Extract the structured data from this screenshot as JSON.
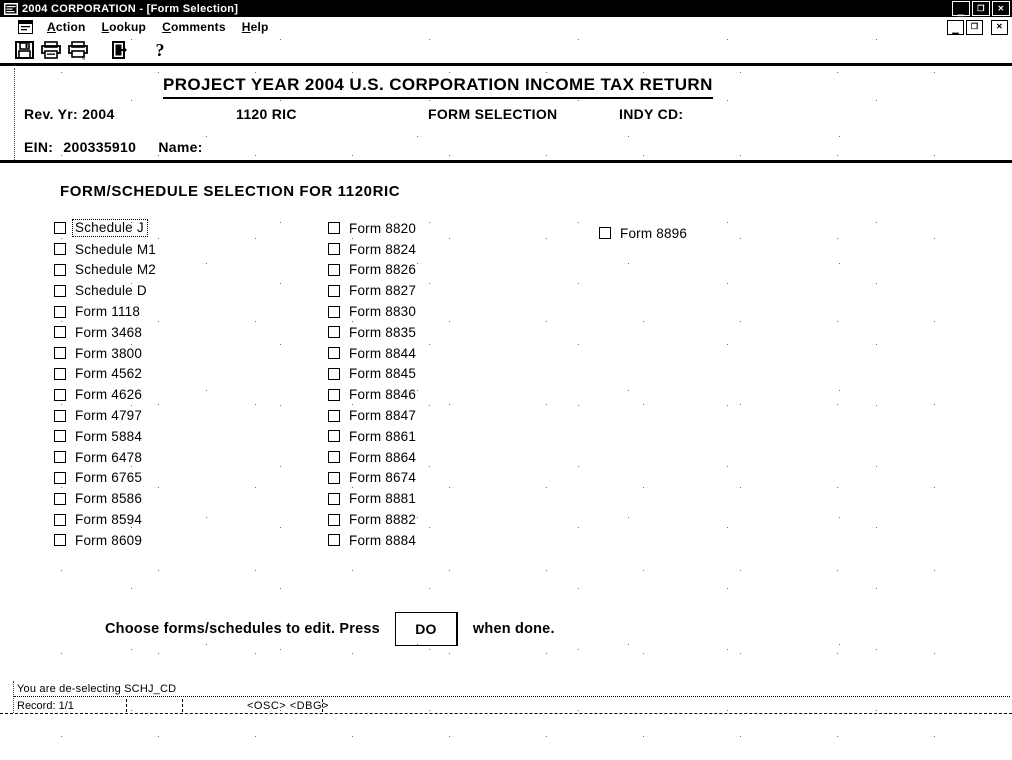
{
  "colors": {
    "titlebar_bg": "#000000",
    "titlebar_fg": "#ffffff",
    "ink": "#000000",
    "paper": "#ffffff"
  },
  "window": {
    "title": "2004 CORPORATION - [Form Selection]"
  },
  "menu": {
    "items": [
      {
        "label": "Action"
      },
      {
        "label": "Lookup"
      },
      {
        "label": "Comments"
      },
      {
        "label": "Help"
      }
    ]
  },
  "toolbar": {
    "buttons": [
      {
        "name": "save-button",
        "icon": "save-icon"
      },
      {
        "name": "print-button",
        "icon": "print-icon"
      },
      {
        "name": "print-setup-button",
        "icon": "print-setup-icon"
      },
      {
        "name": "exit-button",
        "icon": "exit-icon",
        "group_gap": true
      },
      {
        "name": "help-button",
        "icon": "help-icon",
        "group_gap": true,
        "glyph": "?"
      }
    ]
  },
  "header": {
    "title": "PROJECT YEAR 2004 U.S. CORPORATION INCOME TAX RETURN",
    "rev_yr": "Rev. Yr: 2004",
    "form_type": "1120 RIC",
    "screen_name": "FORM SELECTION",
    "indy_cd_label": "INDY CD:",
    "ein_label": "EIN:",
    "ein_value": "200335910",
    "name_label": "Name:"
  },
  "selection": {
    "heading": "FORM/SCHEDULE SELECTION FOR 1120RIC",
    "focused_item": "Schedule J",
    "column1": [
      "Schedule J",
      "Schedule M1",
      "Schedule M2",
      "Schedule D",
      "Form 1118",
      "Form 3468",
      "Form 3800",
      "Form 4562",
      "Form 4626",
      "Form 4797",
      "Form 5884",
      "Form 6478",
      "Form 6765",
      "Form 8586",
      "Form 8594",
      "Form 8609"
    ],
    "column2": [
      "Form 8820",
      "Form 8824",
      "Form 8826",
      "Form 8827",
      "Form 8830",
      "Form 8835",
      "Form 8844",
      "Form 8845",
      "Form 8846",
      "Form 8847",
      "Form 8861",
      "Form 8864",
      "Form 8674",
      "Form 8881",
      "Form 8882",
      "Form 8884"
    ],
    "column3": [
      "Form 8896"
    ]
  },
  "instruction": {
    "text_before": "Choose forms/schedules to edit.  Press",
    "button_label": "DO",
    "text_after": "when done."
  },
  "statusbar": {
    "message": "You are de-selecting SCHJ_CD",
    "record": "Record: 1/1",
    "indicators": "<OSC> <DBG>"
  }
}
